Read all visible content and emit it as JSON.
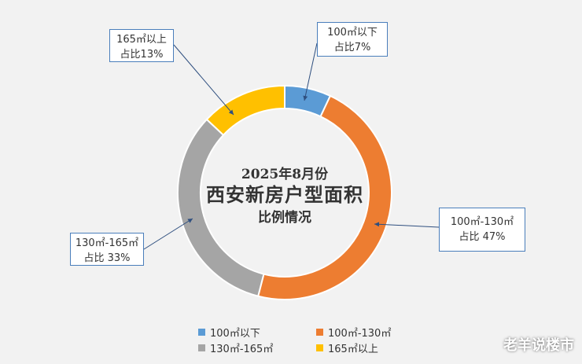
{
  "chart_data": {
    "type": "pie",
    "variant": "donut",
    "categories": [
      "100㎡以下",
      "100㎡-130㎡",
      "130㎡-165㎡",
      "165㎡以上"
    ],
    "values": [
      7,
      47,
      33,
      13
    ],
    "unit": "%",
    "colors": [
      "#5b9bd5",
      "#ed7d31",
      "#a5a5a5",
      "#ffc000"
    ],
    "title_lines": [
      "2025年8月份",
      "西安新房户型面积",
      "比例情况"
    ],
    "data_labels": [
      {
        "name": "100㎡以下",
        "value_text": "占比7%"
      },
      {
        "name": "100㎡-130㎡",
        "value_text": "占比 47%"
      },
      {
        "name": "130㎡-165㎡",
        "value_text": "占比 33%"
      },
      {
        "name": "165㎡以上",
        "value_text": "占比13%"
      }
    ],
    "legend_position": "bottom"
  },
  "watermark": "老羊说楼市"
}
